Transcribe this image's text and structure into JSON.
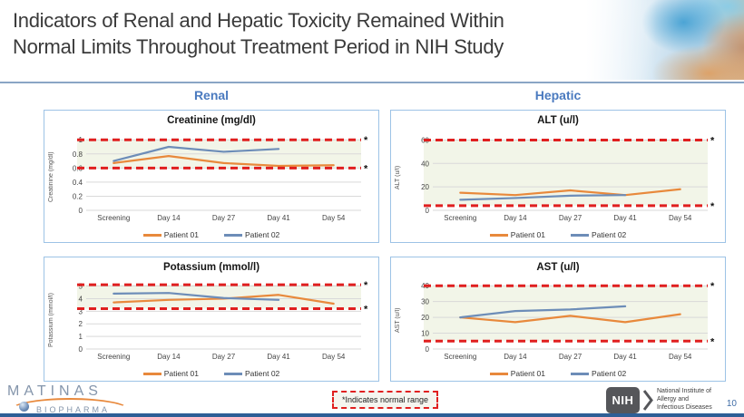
{
  "slide": {
    "title_line1": "Indicators of Renal and Hepatic Toxicity Remained Within",
    "title_line2": "Normal Limits Throughout Treatment Period in NIH Study",
    "page_number": "10"
  },
  "columns": {
    "left": "Renal",
    "right": "Hepatic"
  },
  "normal_marker": "*",
  "legend_note": "*Indicates normal range",
  "footer": {
    "matinas_line1": "MATINAS",
    "matinas_line2": "BIOPHARMA",
    "nih_acronym": "NIH",
    "nih_name_lines": [
      "National Institute of",
      "Allergy and",
      "Infectious Diseases"
    ]
  },
  "colors": {
    "patient01": "#E8893C",
    "patient02": "#6D8DB8",
    "normal_range": "#E01F1F",
    "normal_band": "#F2F5E8",
    "column_header": "#4A7ABF",
    "panel_border": "#9DC3E6"
  },
  "chart_data": [
    {
      "type": "line",
      "title": "Creatinine (mg/dl)",
      "ylabel": "Creatinine (mg/dl)",
      "categories": [
        "Screening",
        "Day 14",
        "Day 27",
        "Day 41",
        "Day 54"
      ],
      "series": [
        {
          "name": "Patient 01",
          "color": "#E8893C",
          "values": [
            0.67,
            0.77,
            0.67,
            0.63,
            0.64
          ]
        },
        {
          "name": "Patient 02",
          "color": "#6D8DB8",
          "values": [
            0.7,
            0.9,
            0.83,
            0.87,
            null
          ]
        }
      ],
      "yticks": [
        0,
        0.2,
        0.4,
        0.6,
        0.8,
        1
      ],
      "ylim": [
        0,
        1.08
      ],
      "normal_range": [
        0.6,
        1.0
      ],
      "grid": true,
      "legend_position": "bottom"
    },
    {
      "type": "line",
      "title": "ALT (u/l)",
      "ylabel": "ALT (u/l)",
      "categories": [
        "Screening",
        "Day 14",
        "Day 27",
        "Day 41",
        "Day 54"
      ],
      "series": [
        {
          "name": "Patient 01",
          "color": "#E8893C",
          "values": [
            15,
            13,
            17,
            13,
            18
          ]
        },
        {
          "name": "Patient 02",
          "color": "#6D8DB8",
          "values": [
            9,
            10.5,
            12.5,
            13,
            null
          ]
        }
      ],
      "yticks": [
        0,
        20,
        40,
        60
      ],
      "ylim": [
        0,
        65
      ],
      "normal_range": [
        4,
        60
      ],
      "grid": true,
      "legend_position": "bottom"
    },
    {
      "type": "line",
      "title": "Potassium (mmol/l)",
      "ylabel": "Potassium (mmol/l)",
      "categories": [
        "Screening",
        "Day 14",
        "Day 27",
        "Day 41",
        "Day 54"
      ],
      "series": [
        {
          "name": "Patient 01",
          "color": "#E8893C",
          "values": [
            3.7,
            3.9,
            4.0,
            4.3,
            3.6
          ]
        },
        {
          "name": "Patient 02",
          "color": "#6D8DB8",
          "values": [
            4.4,
            4.45,
            4.05,
            3.9,
            null
          ]
        }
      ],
      "yticks": [
        0,
        1,
        2,
        3,
        4,
        5
      ],
      "ylim": [
        0,
        5.4
      ],
      "normal_range": [
        3.2,
        5.1
      ],
      "grid": true,
      "legend_position": "bottom"
    },
    {
      "type": "line",
      "title": "AST (u/l)",
      "ylabel": "AST (u/l)",
      "categories": [
        "Screening",
        "Day 14",
        "Day 27",
        "Day 41",
        "Day 54"
      ],
      "series": [
        {
          "name": "Patient 01",
          "color": "#E8893C",
          "values": [
            20,
            17,
            21,
            17,
            22
          ]
        },
        {
          "name": "Patient 02",
          "color": "#6D8DB8",
          "values": [
            20,
            24,
            25,
            27,
            null
          ]
        }
      ],
      "yticks": [
        0,
        10,
        20,
        30,
        40
      ],
      "ylim": [
        0,
        43
      ],
      "normal_range": [
        5,
        40
      ],
      "grid": true,
      "legend_position": "bottom"
    }
  ]
}
